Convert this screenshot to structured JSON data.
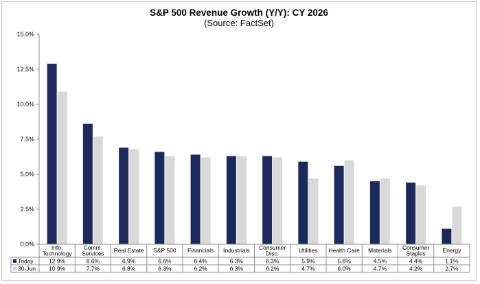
{
  "chart_data": {
    "type": "bar",
    "title": "S&P 500 Revenue Growth (Y/Y):  CY 2026",
    "subtitle": "(Source: FactSet)",
    "categories": [
      [
        "Info.",
        "Technology"
      ],
      [
        "Comm.",
        "Services"
      ],
      [
        "Real Estate"
      ],
      [
        "S&P 500"
      ],
      [
        "Financials"
      ],
      [
        "Industrials"
      ],
      [
        "Consumer",
        "Disc."
      ],
      [
        "Utilities"
      ],
      [
        "Health Care"
      ],
      [
        "Materials"
      ],
      [
        "Consumer",
        "Staples"
      ],
      [
        "Energy"
      ]
    ],
    "series": [
      {
        "name": "Today",
        "color": "#1b2a5a",
        "values": [
          12.9,
          8.6,
          6.9,
          6.6,
          6.4,
          6.3,
          6.3,
          5.9,
          5.6,
          4.5,
          4.4,
          1.1
        ],
        "labels": [
          "12.9%",
          "8.6%",
          "6.9%",
          "6.6%",
          "6.4%",
          "6.3%",
          "6.3%",
          "5.9%",
          "5.6%",
          "4.5%",
          "4.4%",
          "1.1%"
        ]
      },
      {
        "name": "30-Jun",
        "color": "#d9d9d9",
        "values": [
          10.9,
          7.7,
          6.8,
          6.3,
          6.2,
          6.3,
          6.2,
          4.7,
          6.0,
          4.7,
          4.2,
          2.7
        ],
        "labels": [
          "10.9%",
          "7.7%",
          "6.8%",
          "6.3%",
          "6.2%",
          "6.3%",
          "6.2%",
          "4.7%",
          "6.0%",
          "4.7%",
          "4.2%",
          "2.7%"
        ]
      }
    ],
    "ylim": [
      0,
      15
    ],
    "y_ticks": [
      "0.0%",
      "2.5%",
      "5.0%",
      "7.5%",
      "10.0%",
      "12.5%",
      "15.0%"
    ],
    "grid": false,
    "legend": "data-table-below"
  }
}
